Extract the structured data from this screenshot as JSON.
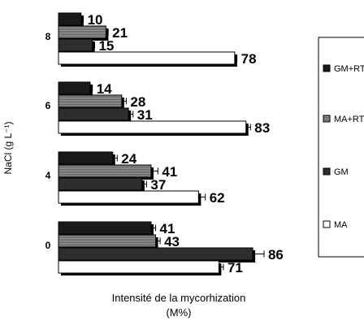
{
  "chart_data": {
    "type": "bar",
    "orientation": "horizontal",
    "title": "",
    "xlabel_line1": "Intensité de la mycorhization",
    "xlabel_line2": "(M%)",
    "ylabel": "NaCl (g L⁻¹)",
    "categories": [
      "0",
      "4",
      "6",
      "8"
    ],
    "xlim": [
      0,
      100
    ],
    "grid": false,
    "legend_position": "right",
    "series": [
      {
        "name": "GM+RT",
        "key": "gmrt",
        "color": "#1a1a1a",
        "pattern": "solid",
        "values": [
          41,
          24,
          14,
          10
        ],
        "errors": [
          2,
          2,
          1,
          1
        ]
      },
      {
        "name": "MA+RT",
        "key": "mart",
        "color": "#7f7f7f",
        "pattern": "hatch",
        "values": [
          43,
          41,
          28,
          21
        ],
        "errors": [
          2,
          3,
          2,
          1
        ]
      },
      {
        "name": "GM",
        "key": "gm",
        "color": "#2e2e2e",
        "pattern": "solid",
        "values": [
          86,
          37,
          31,
          15
        ],
        "errors": [
          5,
          2,
          2,
          1
        ]
      },
      {
        "name": "MA",
        "key": "ma",
        "color": "#ffffff",
        "pattern": "open",
        "values": [
          71,
          62,
          83,
          78
        ],
        "errors": [
          2,
          3,
          2,
          1
        ]
      }
    ],
    "legend_order": [
      "gmrt",
      "mart",
      "gm",
      "ma"
    ]
  }
}
